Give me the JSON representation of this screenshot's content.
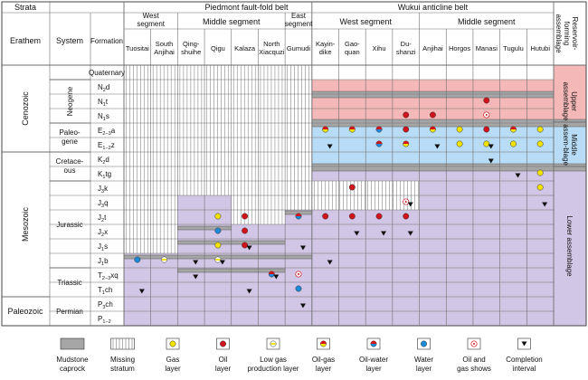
{
  "header": {
    "strata": "Strata",
    "erathem": "Erathem",
    "system": "System",
    "formation": "Formation",
    "piedmont": "Piedmont fault-fold belt",
    "wukui": "Wukui anticline belt",
    "p_west": "West segment",
    "p_middle": "Middle segment",
    "p_east": "East segment",
    "w_west": "West segment",
    "w_middle": "Middle segment",
    "reservoir": "Reservoir-forming assemblage"
  },
  "wells": [
    "Tuositai",
    "South Anjihai",
    "Qing-shuihe",
    "Qigu",
    "Kalaza",
    "North Xiacquzi",
    "Gumudi",
    "Kayin-dike",
    "Gao-quan",
    "Xihu",
    "Du-shanzi",
    "Anjihai",
    "Horgos",
    "Manasi",
    "Tugulu",
    "Hutubi"
  ],
  "erathems": [
    "Cenozoic",
    "Mesozoic",
    "Paleozoic"
  ],
  "systems": [
    "Quaternary",
    "Neogene",
    "Paleo-gene",
    "Cretace-ous",
    "Jurassic",
    "Triassic",
    "Permian"
  ],
  "formations": [
    {
      "base": "Quaternary",
      "sub": ""
    },
    {
      "base": "N",
      "sub": "2",
      "tail": "d"
    },
    {
      "base": "N",
      "sub": "1",
      "tail": "t"
    },
    {
      "base": "N",
      "sub": "1",
      "tail": "s"
    },
    {
      "base": "E",
      "sub": "2−3",
      "tail": "a"
    },
    {
      "base": "E",
      "sub": "1−2",
      "tail": "z"
    },
    {
      "base": "K",
      "sub": "2",
      "tail": "d"
    },
    {
      "base": "K",
      "sub": "1",
      "tail": "tg"
    },
    {
      "base": "J",
      "sub": "3",
      "tail": "k"
    },
    {
      "base": "J",
      "sub": "3",
      "tail": "q"
    },
    {
      "base": "J",
      "sub": "2",
      "tail": "t"
    },
    {
      "base": "J",
      "sub": "2",
      "tail": "x"
    },
    {
      "base": "J",
      "sub": "1",
      "tail": "s"
    },
    {
      "base": "J",
      "sub": "1",
      "tail": "b"
    },
    {
      "base": "T",
      "sub": "2−3",
      "tail": "xq"
    },
    {
      "base": "T",
      "sub": "1",
      "tail": "ch"
    },
    {
      "base": "P",
      "sub": "3",
      "tail": "ch"
    },
    {
      "base": "P",
      "sub": "1−2",
      "tail": ""
    }
  ],
  "assemblages": [
    "Upper assemblage",
    "Middle assem-blage",
    "Lower assemblage"
  ],
  "legend": [
    {
      "key": "mudstone",
      "label1": "Mudstone",
      "label2": "caprock"
    },
    {
      "key": "missing",
      "label1": "Missing",
      "label2": "stratum"
    },
    {
      "key": "gas",
      "label1": "Gas",
      "label2": "layer"
    },
    {
      "key": "oil",
      "label1": "Oil",
      "label2": "layer"
    },
    {
      "key": "lowgas",
      "label1": "Low gas",
      "label2": "production layer"
    },
    {
      "key": "oilgas",
      "label1": "Oil-gas",
      "label2": "layer"
    },
    {
      "key": "oilwater",
      "label1": "Oil-water",
      "label2": "layer"
    },
    {
      "key": "water",
      "label1": "Water",
      "label2": "layer"
    },
    {
      "key": "shows",
      "label1": "Oil and",
      "label2": "gas shows"
    },
    {
      "key": "completion",
      "label1": "Completion",
      "label2": "interval"
    }
  ],
  "colors": {
    "upper": "#f5b8b8",
    "middle": "#b8dcf5",
    "lower": "#d2c6e6",
    "mudstone": "#a6a6a6",
    "gas": "#f2e200",
    "oil": "#d0141c",
    "water": "#1e8ad8",
    "grid": "#6e6e6e"
  },
  "markers": [
    {
      "well": 3,
      "row": 10,
      "type": "gas"
    },
    {
      "well": 4,
      "row": 10,
      "type": "oil"
    },
    {
      "well": 3,
      "row": 11,
      "type": "water"
    },
    {
      "well": 4,
      "row": 11,
      "type": "oil"
    },
    {
      "well": 3,
      "row": 12,
      "type": "gas"
    },
    {
      "well": 4,
      "row": 12,
      "type": "oil"
    },
    {
      "well": 0,
      "row": 13,
      "type": "water"
    },
    {
      "well": 1,
      "row": 13,
      "type": "lowgas"
    },
    {
      "well": 3,
      "row": 13,
      "type": "lowgas"
    },
    {
      "well": 5,
      "row": 14,
      "type": "oilwater"
    },
    {
      "well": 6,
      "row": 14,
      "type": "shows"
    },
    {
      "well": 6,
      "row": 15,
      "type": "water"
    },
    {
      "well": 6,
      "row": 10,
      "type": "oilwater"
    },
    {
      "well": 7,
      "row": 10,
      "type": "oil"
    },
    {
      "well": 8,
      "row": 10,
      "type": "oil"
    },
    {
      "well": 9,
      "row": 10,
      "type": "oil"
    },
    {
      "well": 10,
      "row": 10,
      "type": "oil"
    },
    {
      "well": 8,
      "row": 8,
      "type": "oil"
    },
    {
      "well": 10,
      "row": 9,
      "type": "shows"
    },
    {
      "well": 15,
      "row": 7,
      "type": "gas"
    },
    {
      "well": 15,
      "row": 8,
      "type": "gas"
    },
    {
      "well": 13,
      "row": 2,
      "type": "oil"
    },
    {
      "well": 13,
      "row": 3,
      "type": "shows"
    },
    {
      "well": 10,
      "row": 3,
      "type": "oil"
    },
    {
      "well": 11,
      "row": 3,
      "type": "oil"
    },
    {
      "well": 7,
      "row": 4,
      "type": "oilgas"
    },
    {
      "well": 8,
      "row": 4,
      "type": "oilgas"
    },
    {
      "well": 9,
      "row": 4,
      "type": "oilwater"
    },
    {
      "well": 10,
      "row": 4,
      "type": "oil"
    },
    {
      "well": 11,
      "row": 4,
      "type": "oilgas"
    },
    {
      "well": 12,
      "row": 4,
      "type": "gas"
    },
    {
      "well": 13,
      "row": 4,
      "type": "oil"
    },
    {
      "well": 14,
      "row": 4,
      "type": "oilgas"
    },
    {
      "well": 15,
      "row": 4,
      "type": "gas"
    },
    {
      "well": 9,
      "row": 5,
      "type": "oilwater"
    },
    {
      "well": 10,
      "row": 5,
      "type": "oilgas"
    },
    {
      "well": 12,
      "row": 5,
      "type": "gas"
    },
    {
      "well": 13,
      "row": 5,
      "type": "gas"
    },
    {
      "well": 14,
      "row": 5,
      "type": "gas"
    },
    {
      "well": 15,
      "row": 5,
      "type": "gas"
    }
  ],
  "completions": [
    {
      "well": 2,
      "row": 13
    },
    {
      "well": 3,
      "row": 13
    },
    {
      "well": 4,
      "row": 12
    },
    {
      "well": 6,
      "row": 12
    },
    {
      "well": 2,
      "row": 14
    },
    {
      "well": 5,
      "row": 14
    },
    {
      "well": 0,
      "row": 15
    },
    {
      "well": 4,
      "row": 15
    },
    {
      "well": 6,
      "row": 16
    },
    {
      "well": 7,
      "row": 13
    },
    {
      "well": 8,
      "row": 11
    },
    {
      "well": 9,
      "row": 11
    },
    {
      "well": 10,
      "row": 11
    },
    {
      "well": 10,
      "row": 9
    },
    {
      "well": 11,
      "row": 5
    },
    {
      "well": 13,
      "row": 5
    },
    {
      "well": 13,
      "row": 6
    },
    {
      "well": 14,
      "row": 7
    },
    {
      "well": 15,
      "row": 9
    },
    {
      "well": 7,
      "row": 5
    }
  ]
}
